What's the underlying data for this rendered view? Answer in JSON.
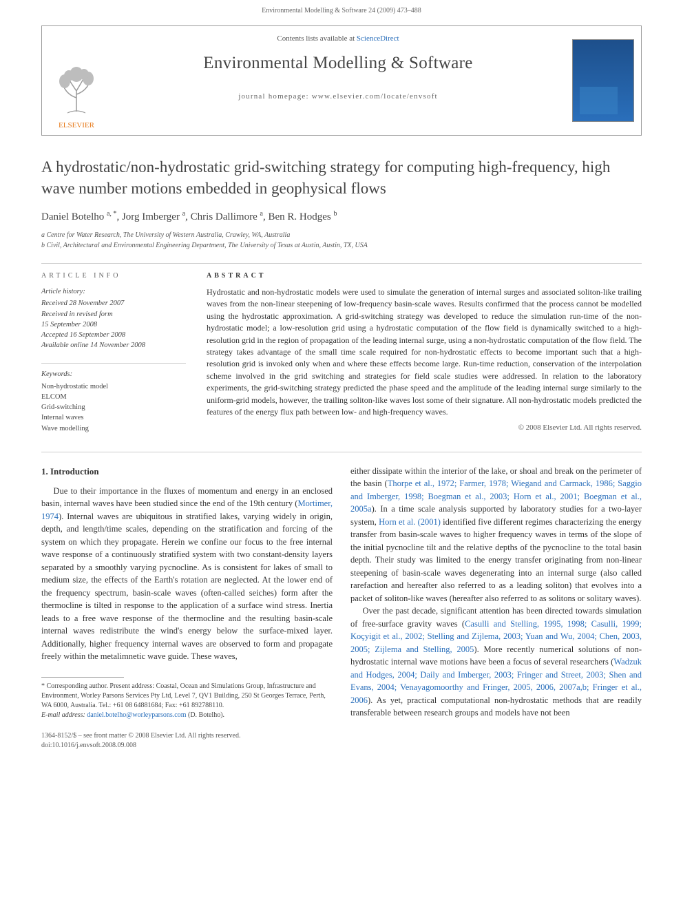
{
  "header": {
    "running_head": "Environmental Modelling & Software 24 (2009) 473–488"
  },
  "infobox": {
    "contents_line_prefix": "Contents lists available at ",
    "contents_line_link": "ScienceDirect",
    "journal_name": "Environmental Modelling & Software",
    "homepage_line": "journal homepage: www.elsevier.com/locate/envsoft",
    "publisher_logo_label": "ELSEVIER",
    "logo_color": "#e67817",
    "cover_bg_top": "#1d4f8b",
    "cover_bg_bottom": "#2a6fbb"
  },
  "article": {
    "title": "A hydrostatic/non-hydrostatic grid-switching strategy for computing high-frequency, high wave number motions embedded in geophysical flows",
    "authors_html": "Daniel Botelho <sup>a, *</sup>, Jorg Imberger <sup>a</sup>, Chris Dallimore <sup>a</sup>, Ben R. Hodges <sup>b</sup>",
    "affiliations": [
      "a Centre for Water Research, The University of Western Australia, Crawley, WA, Australia",
      "b Civil, Architectural and Environmental Engineering Department, The University of Texas at Austin, Austin, TX, USA"
    ]
  },
  "meta": {
    "article_info_label": "ARTICLE INFO",
    "abstract_label": "ABSTRACT",
    "history_label": "Article history:",
    "history_lines": [
      "Received 28 November 2007",
      "Received in revised form",
      "15 September 2008",
      "Accepted 16 September 2008",
      "Available online 14 November 2008"
    ],
    "keywords_label": "Keywords:",
    "keywords": [
      "Non-hydrostatic model",
      "ELCOM",
      "Grid-switching",
      "Internal waves",
      "Wave modelling"
    ],
    "abstract": "Hydrostatic and non-hydrostatic models were used to simulate the generation of internal surges and associated soliton-like trailing waves from the non-linear steepening of low-frequency basin-scale waves. Results confirmed that the process cannot be modelled using the hydrostatic approximation. A grid-switching strategy was developed to reduce the simulation run-time of the non-hydrostatic model; a low-resolution grid using a hydrostatic computation of the flow field is dynamically switched to a high-resolution grid in the region of propagation of the leading internal surge, using a non-hydrostatic computation of the flow field. The strategy takes advantage of the small time scale required for non-hydrostatic effects to become important such that a high-resolution grid is invoked only when and where these effects become large. Run-time reduction, conservation of the interpolation scheme involved in the grid switching and strategies for field scale studies were addressed. In relation to the laboratory experiments, the grid-switching strategy predicted the phase speed and the amplitude of the leading internal surge similarly to the uniform-grid models, however, the trailing soliton-like waves lost some of their signature. All non-hydrostatic models predicted the features of the energy flux path between low- and high-frequency waves.",
    "copyright": "© 2008 Elsevier Ltd. All rights reserved."
  },
  "body": {
    "section_heading": "1. Introduction",
    "col1_p1_a": "Due to their importance in the fluxes of momentum and energy in an enclosed basin, internal waves have been studied since the end of the 19th century (",
    "col1_cite1": "Mortimer, 1974",
    "col1_p1_b": "). Internal waves are ubiquitous in stratified lakes, varying widely in origin, depth, and length/time scales, depending on the stratification and forcing of the system on which they propagate. Herein we confine our focus to the free internal wave response of a continuously stratified system with two constant-density layers separated by a smoothly varying pycnocline. As is consistent for lakes of small to medium size, the effects of the Earth's rotation are neglected. At the lower end of the frequency spectrum, basin-scale waves (often-called seiches) form after the thermocline is tilted in response to the application of a surface wind stress. Inertia leads to a free wave response of the thermocline and the resulting basin-scale internal waves redistribute the wind's energy below the surface-mixed layer. Additionally, higher frequency internal waves are observed to form and propagate freely within the metalimnetic wave guide. These waves,",
    "col2_p1_a": "either dissipate within the interior of the lake, or shoal and break on the perimeter of the basin (",
    "col2_cite1": "Thorpe et al., 1972; Farmer, 1978; Wiegand and Carmack, 1986; Saggio and Imberger, 1998; Boegman et al., 2003; Horn et al., 2001; Boegman et al., 2005a",
    "col2_p1_b": "). In a time scale analysis supported by laboratory studies for a two-layer system, ",
    "col2_cite2": "Horn et al. (2001)",
    "col2_p1_c": " identified five different regimes characterizing the energy transfer from basin-scale waves to higher frequency waves in terms of the slope of the initial pycnocline tilt and the relative depths of the pycnocline to the total basin depth. Their study was limited to the energy transfer originating from non-linear steepening of basin-scale waves degenerating into an internal surge (also called rarefaction and hereafter also referred to as a leading soliton) that evolves into a packet of soliton-like waves (hereafter also referred to as solitons or solitary waves).",
    "col2_p2_a": "Over the past decade, significant attention has been directed towards simulation of free-surface gravity waves (",
    "col2_cite3": "Casulli and Stelling, 1995, 1998; Casulli, 1999; Koçyigit et al., 2002; Stelling and Zijlema, 2003; Yuan and Wu, 2004; Chen, 2003, 2005; Zijlema and Stelling, 2005",
    "col2_p2_b": "). More recently numerical solutions of non-hydrostatic internal wave motions have been a focus of several researchers (",
    "col2_cite4": "Wadzuk and Hodges, 2004; Daily and Imberger, 2003; Fringer and Street, 2003; Shen and Evans, 2004; Venayagomoorthy and Fringer, 2005, 2006, 2007a,b; Fringer et al., 2006",
    "col2_p2_c": "). As yet, practical computational non-hydrostatic methods that are readily transferable between research groups and models have not been"
  },
  "footnote": {
    "text": "* Corresponding author. Present address: Coastal, Ocean and Simulations Group, Infrastructure and Environment, Worley Parsons Services Pty Ltd, Level 7, QV1 Building, 250 St Georges Terrace, Perth, WA 6000, Australia. Tel.: +61 08 64881684; Fax: +61 892788110.",
    "email_label": "E-mail address:",
    "email": "daniel.botelho@worleyparsons.com",
    "email_who": "(D. Botelho)."
  },
  "footer": {
    "issn_line": "1364-8152/$ – see front matter © 2008 Elsevier Ltd. All rights reserved.",
    "doi_line": "doi:10.1016/j.envsoft.2008.09.008"
  },
  "colors": {
    "link": "#2a6fbb",
    "text": "#333333",
    "muted": "#666666",
    "rule": "#cccccc",
    "orange": "#e67817"
  },
  "typography": {
    "title_fontsize": 23,
    "journal_fontsize": 25,
    "body_fontsize": 12.5,
    "abstract_fontsize": 12,
    "meta_fontsize": 10.5,
    "footnote_fontsize": 10
  }
}
